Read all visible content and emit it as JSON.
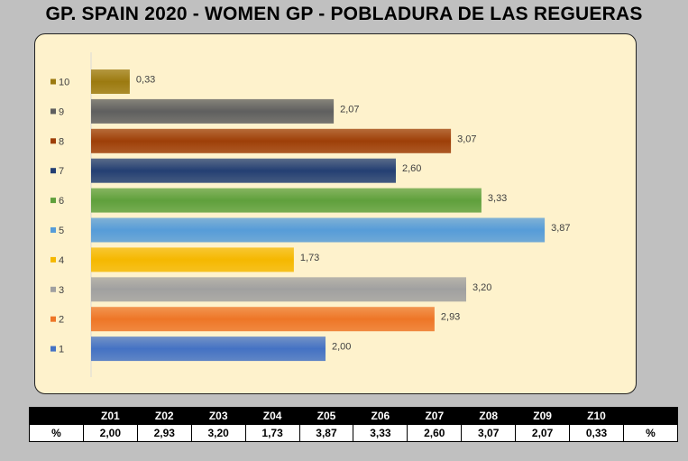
{
  "title": "GP. SPAIN 2020 - WOMEN GP - POBLADURA DE LAS REGUERAS",
  "chart_data": {
    "type": "bar",
    "orientation": "horizontal",
    "categories": [
      "10",
      "9",
      "8",
      "7",
      "6",
      "5",
      "4",
      "3",
      "2",
      "1"
    ],
    "values": [
      0.33,
      2.07,
      3.07,
      2.6,
      3.33,
      3.87,
      1.73,
      3.2,
      2.93,
      2.0
    ],
    "value_labels": [
      "0,33",
      "2,07",
      "3,07",
      "2,60",
      "3,33",
      "3,87",
      "1,73",
      "3,20",
      "2,93",
      "2,00"
    ],
    "colors": [
      "#9c7a10",
      "#5f5f5f",
      "#9e3f08",
      "#243f73",
      "#5fa03c",
      "#569cd8",
      "#f5b800",
      "#a0a0a0",
      "#ee7627",
      "#4472c4"
    ],
    "legend_position": "left",
    "grid": false
  },
  "table": {
    "headers": [
      "",
      "Z01",
      "Z02",
      "Z03",
      "Z04",
      "Z05",
      "Z06",
      "Z07",
      "Z08",
      "Z09",
      "Z10",
      ""
    ],
    "row_label": "%",
    "values": [
      "2,00",
      "2,93",
      "3,20",
      "1,73",
      "3,87",
      "3,33",
      "2,60",
      "3,07",
      "2,07",
      "0,33"
    ],
    "row_end_label": "%"
  }
}
